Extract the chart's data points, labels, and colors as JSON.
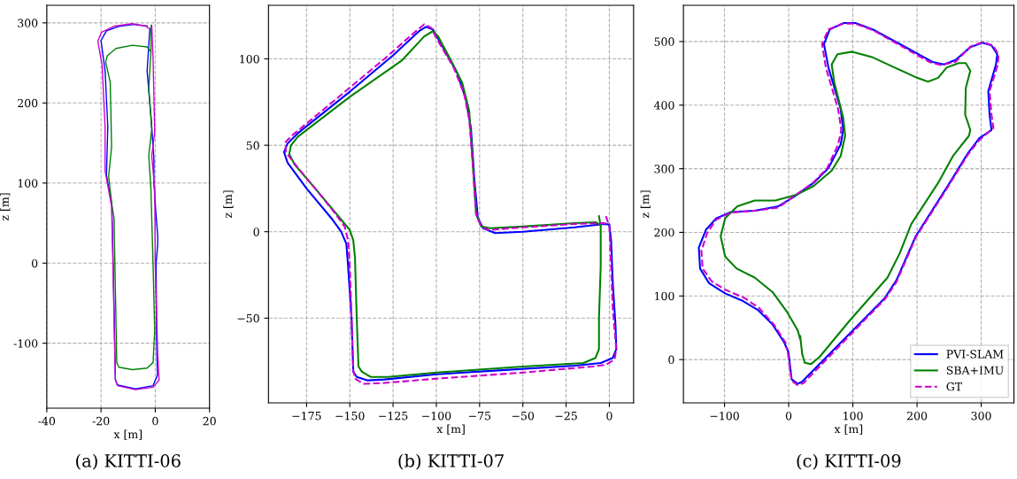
{
  "chart_data": [
    {
      "type": "line",
      "title": "(a) KITTI-06",
      "xlabel": "x [m]",
      "ylabel": "z [m]",
      "xlim": [
        -40,
        20
      ],
      "ylim": [
        -181,
        322
      ],
      "xticks": [
        {
          "value": -40,
          "label": "-40"
        },
        {
          "value": -20,
          "label": "-20"
        },
        0,
        20
      ],
      "yticks": [
        {
          "value": -100,
          "label": "-100"
        },
        0,
        100,
        200,
        300
      ],
      "grid": true,
      "legend": false,
      "series": [
        {
          "color": "#0000ff",
          "line_style": "solid",
          "x": [
            -2,
            -3,
            -1.5,
            -0.5,
            -0.5,
            0.3,
            0.9,
            0.9,
            0.3,
            0.5,
            0.8,
            -0.8,
            -7.3,
            -14,
            -14.7,
            -15.5,
            -16,
            -18,
            -17.5,
            -18.5,
            -20,
            -18,
            -13,
            -8,
            -3
          ],
          "values": [
            293,
            240,
            180,
            130,
            100,
            60,
            34,
            23,
            0,
            -100,
            -140,
            -153,
            -157,
            -152,
            -145,
            -3,
            71,
            110,
            170,
            240,
            278,
            290,
            296,
            298,
            296
          ]
        },
        {
          "color": "#008000",
          "line_style": "solid",
          "x": [
            -1.5,
            -1.6,
            -2.4,
            -1.3,
            -2.4,
            -1.6,
            -0.8,
            -0.2,
            -0.8,
            -3,
            -8.4,
            -13.4,
            -14.2,
            -15.2,
            -15.9,
            -17.2,
            -16.1,
            -16.6,
            -18.3,
            -17.7,
            -14.5,
            -8.4,
            -3,
            -1.6
          ],
          "values": [
            297,
            264,
            218,
            167,
            134,
            93,
            -3,
            -84,
            -124,
            -131,
            -133,
            -130,
            -124,
            56,
            71,
            108,
            145,
            226,
            251,
            259,
            268,
            272,
            270,
            264
          ]
        },
        {
          "color": "#cc00cc",
          "line_style": "solid",
          "x": [
            -1.3,
            -0.8,
            -0.2,
            -1.3,
            -0.2,
            0,
            0.9,
            1.4,
            -0.8,
            -7.3,
            -13.9,
            -14.7,
            -15.6,
            -16.1,
            -18.5,
            -18.5,
            -19.6,
            -21.2,
            -19.9,
            -15,
            -8.4,
            -3.5,
            -1.9
          ],
          "values": [
            297,
            255,
            163,
            134,
            93,
            -3,
            -113,
            -146,
            -155,
            -158,
            -153,
            -146,
            -3,
            71,
            115,
            170,
            248,
            277,
            288,
            296,
            299,
            296,
            292
          ]
        }
      ]
    },
    {
      "type": "line",
      "title": "(b) KITTI-07",
      "xlabel": "x [m]",
      "ylabel": "z [m]",
      "xlim": [
        -197,
        14
      ],
      "ylim": [
        -99,
        131
      ],
      "xticks": [
        -175,
        -150,
        -125,
        -100,
        -75,
        -50,
        -25,
        0
      ],
      "yticks": [
        -50,
        0,
        50,
        100
      ],
      "grid": true,
      "legend": false,
      "series": [
        {
          "color": "#0000ff",
          "line_style": "solid",
          "x": [
            0,
            1,
            2,
            3.6,
            4,
            2,
            -5,
            -20,
            -60,
            -100,
            -130,
            -140,
            -146,
            -148,
            -149,
            -151,
            -152,
            -155,
            -160,
            -175,
            -186,
            -188,
            -186,
            -180,
            -150,
            -125,
            -110,
            -106,
            -102,
            -98,
            -88,
            -83,
            -80,
            -78,
            -76,
            -73,
            -66,
            -50,
            -20,
            -3,
            -0.5
          ],
          "values": [
            4,
            -5,
            -30,
            -55,
            -68,
            -73,
            -76,
            -77.5,
            -80,
            -82.5,
            -85.5,
            -86,
            -84,
            -81,
            -50,
            -20,
            -7,
            0,
            7,
            25,
            40,
            46,
            51,
            57,
            81,
            102,
            116,
            118.5,
            117,
            110,
            92,
            77,
            60,
            30,
            8,
            2,
            -0.8,
            0,
            2.5,
            4.5,
            4.2
          ]
        },
        {
          "color": "#008000",
          "line_style": "solid",
          "x": [
            -6,
            -5,
            -5,
            -6,
            -6,
            -8,
            -15,
            -50,
            -100,
            -128,
            -138,
            -143,
            -145,
            -146,
            -147,
            -148,
            -150,
            -155,
            -170,
            -182,
            -185,
            -184,
            -180,
            -150,
            -120,
            -107,
            -102,
            -99,
            -92,
            -85,
            -81,
            -79,
            -77,
            -74,
            -69,
            -50,
            -20,
            -8,
            -5
          ],
          "values": [
            9,
            3,
            -20,
            -50,
            -68,
            -73,
            -76,
            -78,
            -81.5,
            -84,
            -84,
            -81,
            -78,
            -50,
            -15,
            -5,
            1,
            7,
            25,
            39,
            45,
            50,
            55,
            78,
            99,
            113,
            116,
            113,
            100,
            86,
            70,
            40,
            10,
            3,
            2,
            3,
            5,
            5.5,
            4
          ]
        },
        {
          "color": "#cc00cc",
          "line_style": "dashed",
          "x": [
            -2,
            0,
            1,
            2,
            4,
            3,
            -2,
            -10,
            -50,
            -100,
            -130,
            -142,
            -147,
            -148,
            -149,
            -150,
            -151,
            -153,
            -158,
            -170,
            -180,
            -187,
            -187,
            -183,
            -160,
            -130,
            -113,
            -107,
            -103,
            -100,
            -90,
            -84,
            -81,
            -79,
            -77,
            -74,
            -70,
            -50,
            -20,
            -3,
            0
          ],
          "values": [
            9,
            3,
            -20,
            -45,
            -68,
            -74,
            -77,
            -78,
            -81.5,
            -85,
            -87.5,
            -88,
            -85,
            -80,
            -50,
            -20,
            -5,
            3,
            10,
            25,
            37,
            46,
            52,
            56,
            75,
            100,
            115,
            120,
            118,
            112,
            95,
            80,
            65,
            40,
            10,
            3,
            1,
            2.5,
            4.5,
            5,
            4
          ]
        }
      ]
    },
    {
      "type": "line",
      "title": "(c) KITTI-09",
      "xlabel": "x [m]",
      "ylabel": "z [m]",
      "xlim": [
        -164,
        351
      ],
      "ylim": [
        -68,
        557
      ],
      "xticks": [
        -100,
        0,
        100,
        200,
        300
      ],
      "yticks": [
        0,
        100,
        200,
        300,
        400,
        500
      ],
      "grid": true,
      "legend": "lower right",
      "series": [
        {
          "name": "PVI-SLAM",
          "color": "#0000ff",
          "line_style": "solid",
          "x": [
            0,
            4.6,
            13.8,
            20.7,
            150,
            168,
            198,
            251,
            279,
            297,
            316,
            313,
            311,
            323,
            325,
            316,
            302,
            283,
            260,
            242,
            224,
            177,
            131,
            104,
            85,
            64,
            55,
            62,
            81,
            85,
            81,
            62,
            39,
            7,
            -16,
            -53,
            -90,
            -113,
            -129,
            -140,
            -138,
            -124,
            -99,
            -71,
            -48,
            -25,
            -7,
            -0.5
          ],
          "values": [
            9,
            -31,
            -38,
            -35,
            97,
            125,
            194,
            278,
            324,
            348,
            361,
            385,
            422,
            464,
            480,
            494,
            498,
            491,
            471,
            464,
            468,
            494,
            519,
            529,
            529,
            519,
            496,
            459,
            394,
            361,
            338,
            301,
            278,
            255,
            241,
            234,
            232,
            222,
            204,
            176,
            143,
            120,
            104,
            92,
            78,
            55,
            27,
            12
          ]
        },
        {
          "name": "SBA+IMU",
          "color": "#008000",
          "line_style": "solid",
          "x": [
            18,
            21,
            25,
            35,
            48,
            94,
            154,
            173,
            191,
            233,
            256,
            281,
            283,
            275,
            276,
            283,
            276,
            265,
            246,
            233,
            217,
            200,
            131,
            99,
            76,
            67,
            71,
            85,
            88,
            81,
            67,
            39,
            12,
            -21,
            -53,
            -80,
            -99,
            -106,
            -99,
            -81,
            -53,
            -25,
            -2,
            14,
            18
          ],
          "values": [
            37,
            9,
            -5,
            -7,
            4,
            60,
            129,
            167,
            213,
            278,
            320,
            352,
            361,
            385,
            427,
            454,
            466,
            466,
            459,
            443,
            437,
            443,
            475,
            484,
            480,
            464,
            436,
            380,
            352,
            320,
            297,
            273,
            259,
            250,
            250,
            241,
            222,
            194,
            162,
            143,
            129,
            106,
            74,
            46,
            32
          ]
        },
        {
          "name": "GT",
          "color": "#cc00cc",
          "line_style": "dashed",
          "x": [
            -1.4,
            4.6,
            13.8,
            23,
            150,
            168,
            198,
            251,
            279,
            297,
            319,
            316,
            313,
            326,
            327,
            318,
            302,
            283,
            260,
            237,
            219,
            177,
            131,
            104,
            85,
            62,
            52,
            58,
            77,
            82,
            77,
            60,
            38,
            7,
            -16,
            -53,
            -90,
            -113,
            -127,
            -136,
            -134,
            -120,
            -97,
            -69,
            -46,
            -23,
            -5,
            -1.8
          ],
          "values": [
            11,
            -33,
            -40,
            -37,
            95,
            122,
            192,
            276,
            322,
            345,
            364,
            385,
            422,
            464,
            480,
            494,
            499,
            492,
            468,
            463,
            468,
            492,
            518,
            528,
            528,
            519,
            496,
            459,
            394,
            361,
            338,
            301,
            278,
            256,
            239,
            234,
            231,
            220,
            199,
            171,
            143,
            123,
            109,
            97,
            81,
            55,
            27,
            14
          ]
        }
      ]
    }
  ]
}
